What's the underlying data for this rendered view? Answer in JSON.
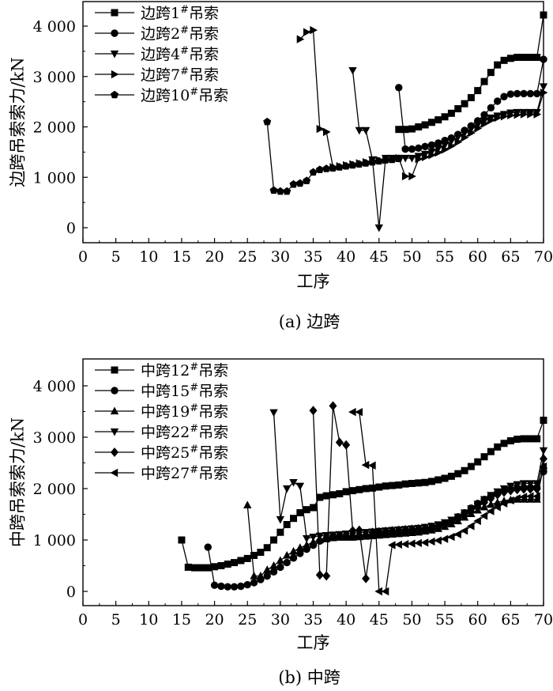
{
  "chart_data": [
    {
      "type": "line",
      "caption": "(a) 边跨",
      "xlabel": "工序",
      "ylabel": "边跨吊索索力/kN",
      "xlim": [
        0,
        70
      ],
      "ylim": [
        -250,
        4500
      ],
      "xticks": [
        0,
        5,
        10,
        15,
        20,
        25,
        30,
        35,
        40,
        45,
        50,
        55,
        60,
        65,
        70
      ],
      "xtick_labels": [
        "0",
        "5",
        "10",
        "15",
        "20",
        "25",
        "30",
        "35",
        "40",
        "45",
        "50",
        "55",
        "60",
        "65",
        "70"
      ],
      "yticks": [
        0,
        1000,
        2000,
        3000,
        4000
      ],
      "ytick_labels": [
        "0",
        "1 000",
        "2 000",
        "3 000",
        "4 000"
      ],
      "legend_position": "top-left",
      "series": [
        {
          "name": "边跨1#吊索",
          "label_base": "边跨1",
          "marker": "square",
          "x": [
            48,
            49,
            50,
            51,
            52,
            53,
            54,
            55,
            56,
            57,
            58,
            59,
            60,
            61,
            62,
            63,
            64,
            65,
            66,
            67,
            68,
            69,
            70
          ],
          "y": [
            1950,
            1950,
            1960,
            2000,
            2040,
            2090,
            2140,
            2200,
            2270,
            2360,
            2460,
            2580,
            2720,
            2900,
            3080,
            3230,
            3320,
            3360,
            3380,
            3380,
            3380,
            3380,
            4220
          ]
        },
        {
          "name": "边跨2#吊索",
          "label_base": "边跨2",
          "marker": "circle",
          "x": [
            48,
            49,
            50,
            51,
            52,
            53,
            54,
            55,
            56,
            57,
            58,
            59,
            60,
            61,
            62,
            63,
            64,
            65,
            66,
            67,
            68,
            69,
            70
          ],
          "y": [
            2780,
            1560,
            1560,
            1580,
            1610,
            1640,
            1680,
            1730,
            1780,
            1850,
            1930,
            2020,
            2120,
            2240,
            2380,
            2510,
            2600,
            2650,
            2660,
            2660,
            2660,
            2660,
            3340
          ]
        },
        {
          "name": "边跨4#吊索",
          "label_base": "边跨4",
          "marker": "triangle-down",
          "x": [
            41,
            42,
            43,
            44,
            45,
            46,
            47,
            48,
            49,
            50,
            51,
            52,
            53,
            54,
            55,
            56,
            57,
            58,
            59,
            60,
            61,
            62,
            63,
            64,
            65,
            66,
            67,
            68,
            69,
            70
          ],
          "y": [
            3120,
            1930,
            1930,
            1350,
            0,
            1380,
            1380,
            1380,
            1380,
            1380,
            1420,
            1460,
            1510,
            1570,
            1640,
            1720,
            1800,
            1880,
            1960,
            2040,
            2120,
            2180,
            2220,
            2250,
            2280,
            2290,
            2290,
            2290,
            2290,
            2800
          ]
        },
        {
          "name": "边跨7#吊索",
          "label_base": "边跨7",
          "marker": "triangle-right",
          "x": [
            33,
            34,
            35,
            36,
            37,
            38,
            39,
            40,
            41,
            42,
            43,
            44,
            45,
            46,
            47,
            48,
            49,
            50,
            51,
            52,
            53,
            54,
            55,
            56,
            57,
            58,
            59,
            60,
            61,
            62,
            63,
            64,
            65,
            66,
            67,
            68,
            69,
            70
          ],
          "y": [
            3740,
            3880,
            3920,
            1960,
            1900,
            1200,
            1220,
            1240,
            1260,
            1280,
            1300,
            1320,
            1340,
            1340,
            1360,
            1380,
            1020,
            1020,
            1360,
            1400,
            1440,
            1490,
            1550,
            1620,
            1700,
            1790,
            1880,
            1970,
            2060,
            2130,
            2180,
            2210,
            2230,
            2240,
            2250,
            2250,
            2250,
            2680
          ]
        },
        {
          "name": "边跨10#吊索",
          "label_base": "边跨10",
          "marker": "pentagon",
          "x": [
            28,
            29,
            30,
            31,
            32,
            33,
            34,
            35,
            36,
            37,
            38,
            39,
            40,
            41,
            42,
            43,
            44,
            45,
            46,
            47,
            48
          ],
          "y": [
            2100,
            740,
            720,
            720,
            860,
            880,
            930,
            1100,
            1150,
            1170,
            1180,
            1200,
            1220,
            1240,
            1260,
            1280,
            1300,
            1320,
            1340,
            1350,
            1370
          ]
        }
      ]
    },
    {
      "type": "line",
      "caption": "(b) 中跨",
      "xlabel": "工序",
      "ylabel": "中跨吊索索力/kN",
      "xlim": [
        0,
        70
      ],
      "ylim": [
        -250,
        4500
      ],
      "xticks": [
        0,
        5,
        10,
        15,
        20,
        25,
        30,
        35,
        40,
        45,
        50,
        55,
        60,
        65,
        70
      ],
      "xtick_labels": [
        "0",
        "5",
        "10",
        "15",
        "20",
        "25",
        "30",
        "35",
        "40",
        "45",
        "50",
        "55",
        "60",
        "65",
        "70"
      ],
      "yticks": [
        0,
        1000,
        2000,
        3000,
        4000
      ],
      "ytick_labels": [
        "0",
        "1 000",
        "2 000",
        "3 000",
        "4 000"
      ],
      "legend_position": "top-left",
      "series": [
        {
          "name": "中跨12#吊索",
          "label_base": "中跨12",
          "marker": "square",
          "x": [
            15,
            16,
            17,
            18,
            19,
            20,
            21,
            22,
            23,
            24,
            25,
            26,
            27,
            28,
            29,
            30,
            31,
            32,
            33,
            34,
            35,
            36,
            37,
            38,
            39,
            40,
            41,
            42,
            43,
            44,
            45,
            46,
            47,
            48,
            49,
            50,
            51,
            52,
            53,
            54,
            55,
            56,
            57,
            58,
            59,
            60,
            61,
            62,
            63,
            64,
            65,
            66,
            67,
            68,
            69,
            70
          ],
          "y": [
            1000,
            470,
            460,
            460,
            460,
            480,
            500,
            530,
            560,
            600,
            640,
            700,
            760,
            850,
            1000,
            1150,
            1300,
            1420,
            1530,
            1590,
            1630,
            1830,
            1860,
            1880,
            1900,
            1940,
            1960,
            1980,
            2000,
            2010,
            2030,
            2050,
            2060,
            2070,
            2090,
            2100,
            2110,
            2120,
            2140,
            2170,
            2200,
            2240,
            2290,
            2350,
            2430,
            2520,
            2620,
            2720,
            2810,
            2880,
            2930,
            2960,
            2970,
            2970,
            2970,
            3330
          ]
        },
        {
          "name": "中跨15#吊索",
          "label_base": "中跨15",
          "marker": "circle",
          "x": [
            19,
            20,
            21,
            22,
            23,
            24,
            25,
            26,
            27,
            28,
            29,
            30,
            31,
            32,
            33,
            34,
            35,
            36,
            37,
            38,
            39,
            40,
            41,
            42,
            43,
            44,
            45,
            46,
            47,
            48,
            49,
            50,
            51,
            52,
            53,
            54,
            55,
            56,
            57,
            58,
            59,
            60,
            61,
            62,
            63,
            64,
            65,
            66,
            67,
            68,
            69,
            70
          ],
          "y": [
            860,
            120,
            100,
            90,
            90,
            100,
            130,
            170,
            230,
            300,
            380,
            470,
            560,
            650,
            740,
            820,
            900,
            980,
            1030,
            1050,
            1060,
            1060,
            1060,
            1070,
            1080,
            1090,
            1100,
            1110,
            1120,
            1130,
            1140,
            1150,
            1170,
            1190,
            1220,
            1260,
            1310,
            1370,
            1450,
            1530,
            1620,
            1710,
            1790,
            1860,
            1920,
            1960,
            1990,
            2010,
            2020,
            2020,
            2020,
            2330
          ]
        },
        {
          "name": "中跨19#吊索",
          "label_base": "中跨19",
          "marker": "triangle-up",
          "x": [
            25,
            26,
            27,
            28,
            29,
            30,
            31,
            32,
            33,
            34,
            35,
            36,
            37,
            38,
            39,
            40,
            41,
            42,
            43,
            44,
            45,
            46,
            47,
            48,
            49,
            50,
            51,
            52,
            53,
            54,
            55,
            56,
            57,
            58,
            59,
            60,
            61,
            62,
            63,
            64,
            65,
            66,
            67,
            68,
            69,
            70
          ],
          "y": [
            1680,
            300,
            300,
            420,
            500,
            600,
            700,
            780,
            850,
            900,
            960,
            1000,
            1020,
            1040,
            1050,
            1050,
            1050,
            1060,
            1070,
            1080,
            1090,
            1100,
            1110,
            1120,
            1130,
            1140,
            1150,
            1170,
            1190,
            1220,
            1260,
            1310,
            1370,
            1440,
            1510,
            1580,
            1640,
            1690,
            1730,
            1760,
            1780,
            1790,
            1790,
            1790,
            1790,
            2450
          ]
        },
        {
          "name": "中跨22#吊索",
          "label_base": "中跨22",
          "marker": "triangle-down",
          "x": [
            29,
            30,
            31,
            32,
            33,
            34,
            35,
            36,
            37,
            38,
            39,
            40,
            41,
            42,
            43,
            44,
            45,
            46,
            47,
            48,
            49,
            50,
            51,
            52,
            53,
            54,
            55,
            56,
            57,
            58,
            59,
            60,
            61,
            62,
            63,
            64,
            65,
            66,
            67,
            68,
            69,
            70
          ],
          "y": [
            3480,
            1400,
            2000,
            2120,
            2050,
            1030,
            1060,
            1080,
            1090,
            1100,
            1110,
            1120,
            1130,
            1140,
            1150,
            1160,
            1170,
            1180,
            1190,
            1200,
            1210,
            1220,
            1230,
            1250,
            1270,
            1300,
            1340,
            1390,
            1450,
            1530,
            1610,
            1700,
            1790,
            1870,
            1940,
            2000,
            2050,
            2080,
            2100,
            2100,
            2100,
            2740
          ]
        },
        {
          "name": "中跨25#吊索",
          "label_base": "中跨25",
          "marker": "diamond",
          "x": [
            35,
            36,
            37,
            38,
            39,
            40,
            41,
            42,
            43,
            44,
            45,
            46,
            47,
            48,
            49,
            50,
            51,
            52,
            53,
            54,
            55,
            56,
            57,
            58,
            59,
            60,
            61,
            62,
            63,
            64,
            65,
            66,
            67,
            68,
            69,
            70
          ],
          "y": [
            3520,
            320,
            300,
            3610,
            2900,
            2850,
            1180,
            1190,
            250,
            1150,
            1160,
            1170,
            1180,
            1190,
            1200,
            1210,
            1220,
            1230,
            1250,
            1270,
            1300,
            1340,
            1400,
            1470,
            1550,
            1640,
            1730,
            1810,
            1880,
            1930,
            1960,
            1980,
            1990,
            1990,
            1990,
            2580
          ]
        },
        {
          "name": "中跨27#吊索",
          "label_base": "中跨27",
          "marker": "triangle-left",
          "x": [
            41,
            42,
            43,
            44,
            45,
            46,
            47,
            48,
            49,
            50,
            51,
            52,
            53,
            54,
            55,
            56,
            57,
            58,
            59,
            60,
            61,
            62,
            63,
            64,
            65,
            66,
            67,
            68,
            69,
            70
          ],
          "y": [
            3490,
            3490,
            2460,
            2450,
            0,
            0,
            900,
            910,
            920,
            930,
            940,
            950,
            970,
            990,
            1020,
            1060,
            1110,
            1180,
            1270,
            1370,
            1470,
            1560,
            1640,
            1710,
            1770,
            1810,
            1840,
            1850,
            1850,
            2430
          ]
        }
      ]
    }
  ]
}
